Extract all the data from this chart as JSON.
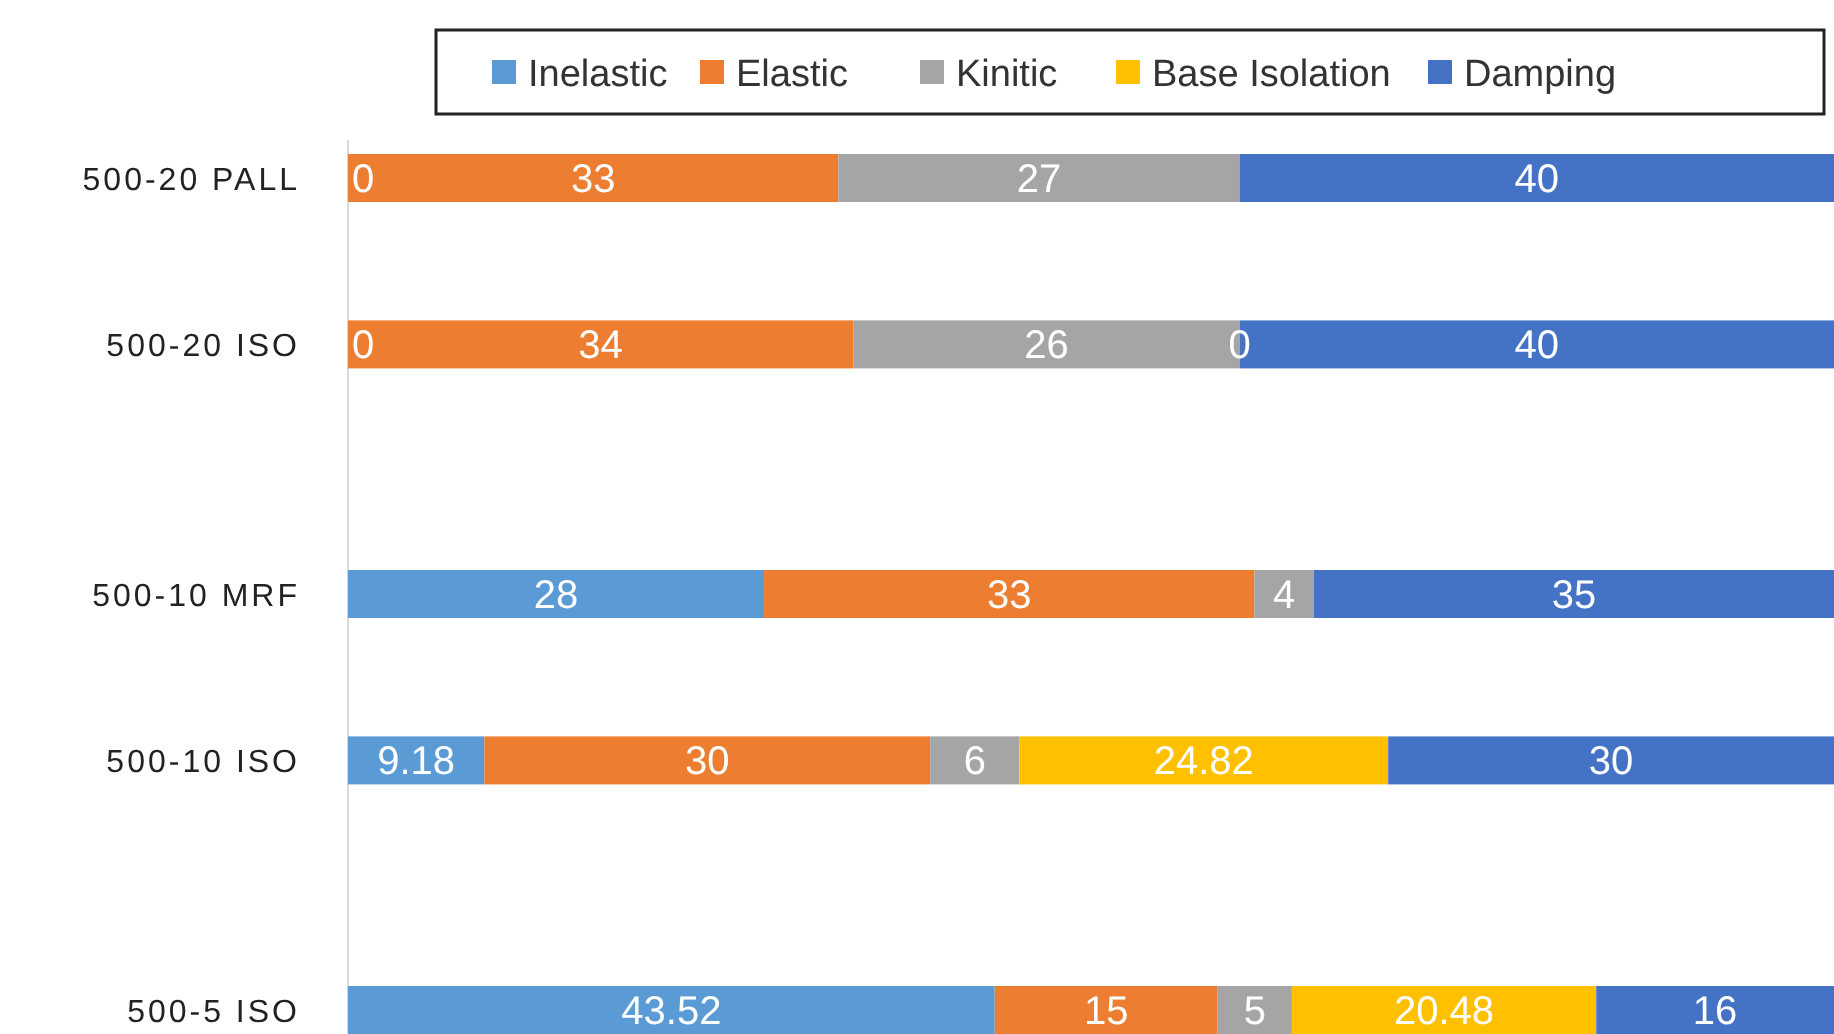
{
  "chart_data": {
    "type": "bar",
    "orientation": "horizontal",
    "stacked": true,
    "legend": "top",
    "tick_labels": "y",
    "xlim": [
      0,
      100
    ],
    "categories": [
      "500-20 PALL",
      null,
      "500-20 ISO",
      null,
      null,
      "500-10 MRF",
      null,
      "500-10 ISO",
      null,
      null,
      "500-5 ISO"
    ],
    "series": [
      {
        "name": "Inelastic",
        "color": "#5b9bd5",
        "values": [
          0,
          null,
          0,
          null,
          null,
          28,
          null,
          9.18,
          null,
          null,
          43.52
        ],
        "value_labels": [
          null,
          null,
          null,
          null,
          null,
          "28",
          null,
          "9.18",
          null,
          null,
          "43.52"
        ]
      },
      {
        "name": "Elastic",
        "color": "#ed7d31",
        "values": [
          33,
          null,
          34,
          null,
          null,
          33,
          null,
          30,
          null,
          null,
          15
        ],
        "value_labels": [
          "33",
          null,
          "34",
          null,
          null,
          "33",
          null,
          "30",
          null,
          null,
          "15"
        ]
      },
      {
        "name": "Kinitic",
        "color": "#a5a5a5",
        "values": [
          27,
          null,
          26,
          null,
          null,
          4,
          null,
          6,
          null,
          null,
          5
        ],
        "value_labels": [
          "27",
          null,
          "26",
          null,
          null,
          "4",
          null,
          "6",
          null,
          null,
          "5"
        ]
      },
      {
        "name": "Base Isolation",
        "color": "#ffc000",
        "values": [
          null,
          null,
          0,
          null,
          null,
          null,
          null,
          24.82,
          null,
          null,
          20.48
        ],
        "value_labels": [
          null,
          null,
          null,
          null,
          null,
          null,
          null,
          "24.82",
          null,
          null,
          "20.48"
        ]
      },
      {
        "name": "Damping",
        "color": "#4472c4",
        "values": [
          40,
          null,
          40,
          null,
          null,
          35,
          null,
          30,
          null,
          null,
          16
        ],
        "value_labels": [
          "40",
          null,
          "40",
          null,
          null,
          "35",
          null,
          "30",
          null,
          null,
          "16"
        ]
      }
    ],
    "annotations": [
      "0",
      "0",
      {
        "text": "0",
        "x": 60,
        "y": "500-20 ISO"
      }
    ]
  }
}
